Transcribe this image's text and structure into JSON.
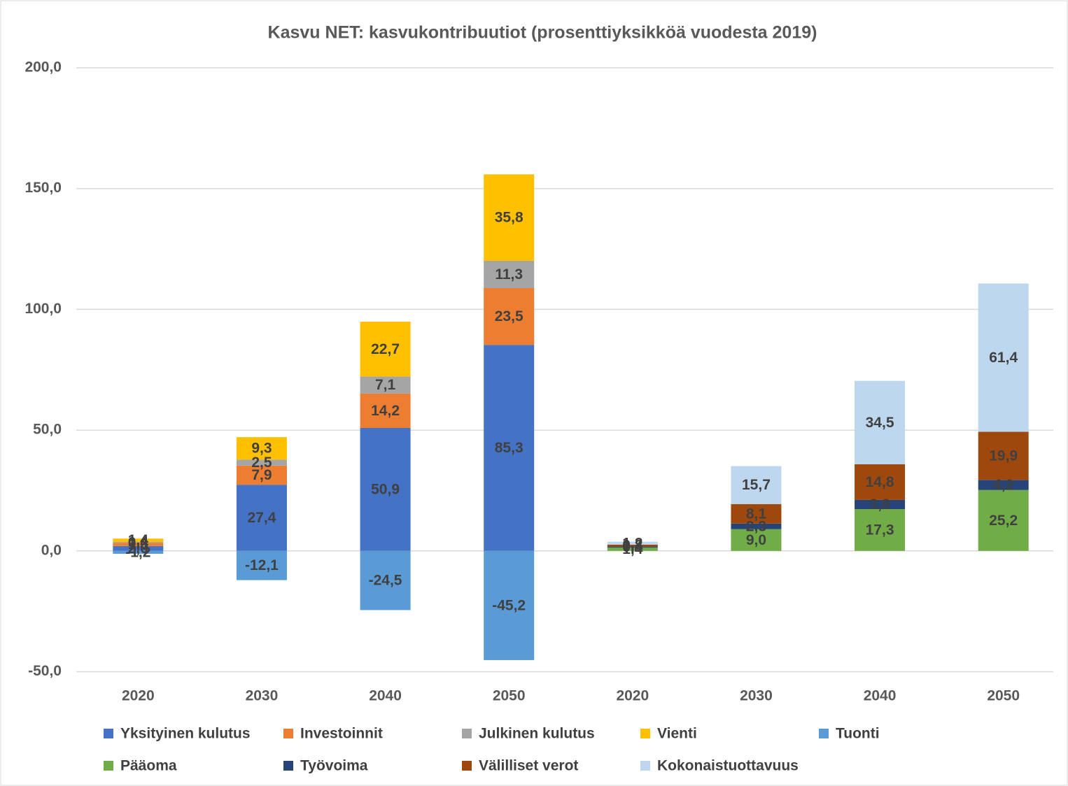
{
  "chart_data": {
    "type": "bar",
    "stacked": true,
    "title": "Kasvu NET: kasvukontribuutiot (prosenttiyksikköä vuodesta 2019)",
    "categories": [
      "2020",
      "2030",
      "2040",
      "2050",
      "2020",
      "2030",
      "2040",
      "2050"
    ],
    "ylim": [
      -50,
      200
    ],
    "yticks": [
      {
        "value": -50,
        "label": "-50,0"
      },
      {
        "value": 0,
        "label": "0,0"
      },
      {
        "value": 50,
        "label": "50,0"
      },
      {
        "value": 100,
        "label": "100,0"
      },
      {
        "value": 150,
        "label": "150,0"
      },
      {
        "value": 200,
        "label": "200,0"
      }
    ],
    "grid": true,
    "legend": "bottom",
    "series": [
      {
        "name": "Yksityinen kulutus",
        "color": "#4472c4",
        "values": [
          2.0,
          27.4,
          50.9,
          85.3,
          null,
          null,
          null,
          null
        ],
        "value_labels": [
          "2,0",
          "27,4",
          "50,9",
          "85,3",
          null,
          null,
          null,
          null
        ]
      },
      {
        "name": "Investoinnit",
        "color": "#ed7d31",
        "values": [
          1.3,
          7.9,
          14.2,
          23.5,
          null,
          null,
          null,
          null
        ],
        "value_labels": [
          "1,3",
          "7,9",
          "14,2",
          "23,5",
          null,
          null,
          null,
          null
        ]
      },
      {
        "name": "Julkinen kulutus",
        "color": "#a5a5a5",
        "values": [
          0.4,
          2.5,
          7.1,
          11.3,
          null,
          null,
          null,
          null
        ],
        "value_labels": [
          "0,4",
          "2,5",
          "7,1",
          "11,3",
          null,
          null,
          null,
          null
        ]
      },
      {
        "name": "Vienti",
        "color": "#ffc000",
        "values": [
          1.4,
          9.3,
          22.7,
          35.8,
          null,
          null,
          null,
          null
        ],
        "value_labels": [
          "1,4",
          "9,3",
          "22,7",
          "35,8",
          null,
          null,
          null,
          null
        ]
      },
      {
        "name": "Tuonti",
        "color": "#5b9bd5",
        "values": [
          -1.2,
          -12.1,
          -24.5,
          -45.2,
          null,
          null,
          null,
          null
        ],
        "value_labels": [
          "-1,2",
          "-12,1",
          "-24,5",
          "-45,2",
          null,
          null,
          null,
          null
        ]
      },
      {
        "name": "Pääoma",
        "color": "#70ad47",
        "values": [
          null,
          null,
          null,
          null,
          1.4,
          9.0,
          17.3,
          25.2
        ],
        "value_labels": [
          null,
          null,
          null,
          null,
          "1,4",
          "9,0",
          "17,3",
          "25,2"
        ]
      },
      {
        "name": "Työvoima",
        "color": "#264478",
        "values": [
          null,
          null,
          null,
          null,
          0.4,
          2.3,
          3.8,
          4.2
        ],
        "value_labels": [
          null,
          null,
          null,
          null,
          "0,4",
          "2,3",
          "3,8",
          "4,2"
        ]
      },
      {
        "name": "Välilliset verot",
        "color": "#9e480e",
        "values": [
          null,
          null,
          null,
          null,
          0.8,
          8.1,
          14.8,
          19.9
        ],
        "value_labels": [
          null,
          null,
          null,
          null,
          "0,8",
          "8,1",
          "14,8",
          "19,9"
        ]
      },
      {
        "name": "Kokonaistuottavuus",
        "color": "#bdd7ee",
        "values": [
          null,
          null,
          null,
          null,
          1.2,
          15.7,
          34.5,
          61.4
        ],
        "value_labels": [
          null,
          null,
          null,
          null,
          "1,2",
          "15,7",
          "34,5",
          "61,4"
        ]
      }
    ]
  }
}
